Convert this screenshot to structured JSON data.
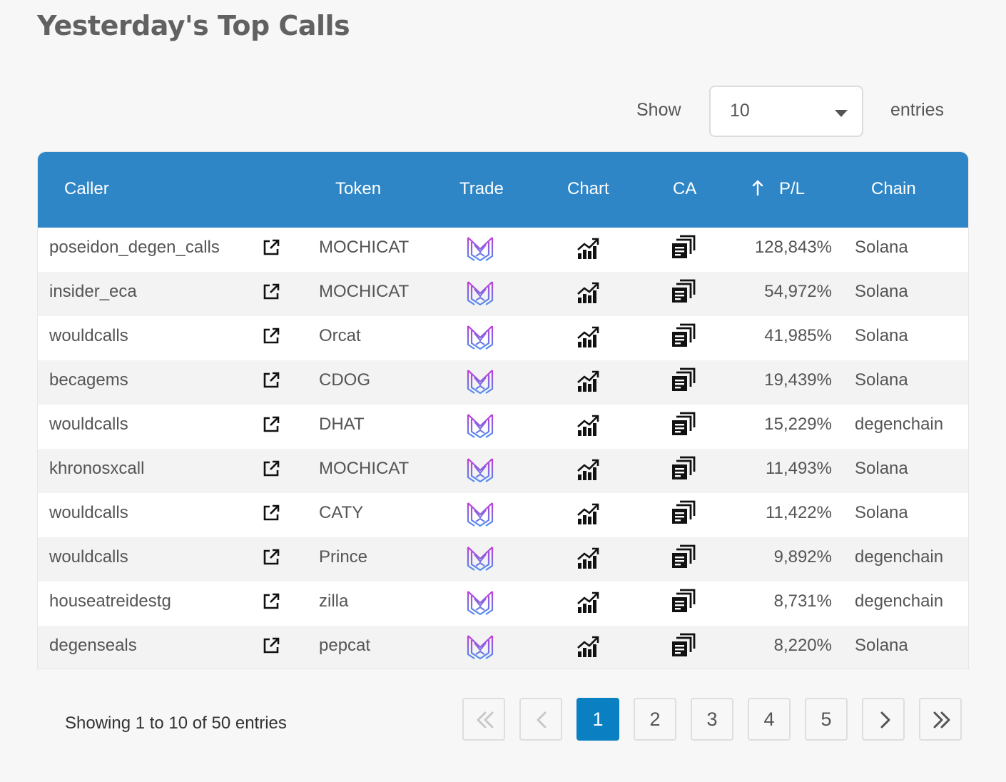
{
  "page": {
    "title": "Yesterday's Top Calls"
  },
  "length_menu": {
    "show_label": "Show",
    "value": "10",
    "entries_label": "entries"
  },
  "table": {
    "columns": {
      "caller": "Caller",
      "token": "Token",
      "trade": "Trade",
      "chart": "Chart",
      "ca": "CA",
      "pl": "P/L",
      "chain": "Chain"
    },
    "sort": {
      "column": "P/L",
      "direction": "descending",
      "icon": "sort-arrow-up-icon"
    },
    "rows": [
      {
        "caller": "poseidon_degen_calls",
        "token": "MOCHICAT",
        "pl": "128,843%",
        "chain": "Solana"
      },
      {
        "caller": "insider_eca",
        "token": "MOCHICAT",
        "pl": "54,972%",
        "chain": "Solana"
      },
      {
        "caller": "wouldcalls",
        "token": "Orcat",
        "pl": "41,985%",
        "chain": "Solana"
      },
      {
        "caller": "becagems",
        "token": "CDOG",
        "pl": "19,439%",
        "chain": "Solana"
      },
      {
        "caller": "wouldcalls",
        "token": "DHAT",
        "pl": "15,229%",
        "chain": "degenchain"
      },
      {
        "caller": "khronosxcall",
        "token": "MOCHICAT",
        "pl": "11,493%",
        "chain": "Solana"
      },
      {
        "caller": "wouldcalls",
        "token": "CATY",
        "pl": "11,422%",
        "chain": "Solana"
      },
      {
        "caller": "wouldcalls",
        "token": "Prince",
        "pl": "9,892%",
        "chain": "degenchain"
      },
      {
        "caller": "houseatreidestg",
        "token": "zilla",
        "pl": "8,731%",
        "chain": "degenchain"
      },
      {
        "caller": "degenseals",
        "token": "pepcat",
        "pl": "8,220%",
        "chain": "Solana"
      }
    ],
    "row_icons": {
      "caller_link": "external-link-icon",
      "trade": "trade-logo-icon",
      "chart": "chart-icon",
      "ca": "copy-icon"
    }
  },
  "pagination": {
    "info": "Showing 1 to 10 of 50 entries",
    "pages": [
      "1",
      "2",
      "3",
      "4",
      "5"
    ],
    "current": "1",
    "first_icon": "double-chevron-left-icon",
    "prev_icon": "chevron-left-icon",
    "next_icon": "chevron-right-icon",
    "last_icon": "double-chevron-right-icon"
  },
  "colors": {
    "header_bg": "#2e86c7",
    "active_page": "#0a7fc2",
    "title": "#616161"
  }
}
